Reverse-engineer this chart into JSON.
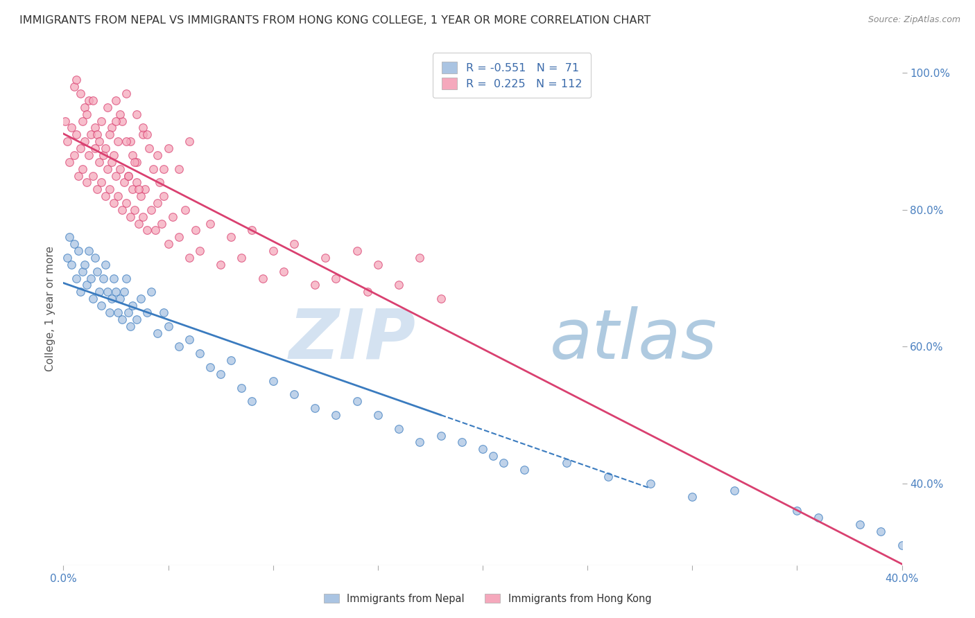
{
  "title": "IMMIGRANTS FROM NEPAL VS IMMIGRANTS FROM HONG KONG COLLEGE, 1 YEAR OR MORE CORRELATION CHART",
  "source": "Source: ZipAtlas.com",
  "ylabel": "College, 1 year or more",
  "xmin": 0.0,
  "xmax": 40.0,
  "ymin": 28.0,
  "ymax": 103.0,
  "right_yticks": [
    40.0,
    60.0,
    80.0,
    100.0
  ],
  "nepal_R": -0.551,
  "nepal_N": 71,
  "hk_R": 0.225,
  "hk_N": 112,
  "nepal_color": "#aac4e2",
  "hk_color": "#f5a8bc",
  "nepal_line_color": "#3a7bbf",
  "hk_line_color": "#d94070",
  "watermark_zip": "ZIP",
  "watermark_atlas": "atlas",
  "background_color": "#ffffff",
  "grid_color": "#c0d0e0",
  "nepal_scatter_x": [
    0.2,
    0.3,
    0.4,
    0.5,
    0.6,
    0.7,
    0.8,
    0.9,
    1.0,
    1.1,
    1.2,
    1.3,
    1.4,
    1.5,
    1.6,
    1.7,
    1.8,
    1.9,
    2.0,
    2.1,
    2.2,
    2.3,
    2.4,
    2.5,
    2.6,
    2.7,
    2.8,
    2.9,
    3.0,
    3.1,
    3.2,
    3.3,
    3.5,
    3.7,
    4.0,
    4.2,
    4.5,
    4.8,
    5.0,
    5.5,
    6.0,
    6.5,
    7.0,
    7.5,
    8.0,
    8.5,
    9.0,
    10.0,
    11.0,
    12.0,
    13.0,
    14.0,
    15.0,
    16.0,
    17.0,
    18.0,
    20.0,
    20.5,
    21.0,
    22.0,
    24.0,
    26.0,
    28.0,
    30.0,
    32.0,
    35.0,
    36.0,
    38.0,
    39.0,
    40.0,
    19.0
  ],
  "nepal_scatter_y": [
    73,
    76,
    72,
    75,
    70,
    74,
    68,
    71,
    72,
    69,
    74,
    70,
    67,
    73,
    71,
    68,
    66,
    70,
    72,
    68,
    65,
    67,
    70,
    68,
    65,
    67,
    64,
    68,
    70,
    65,
    63,
    66,
    64,
    67,
    65,
    68,
    62,
    65,
    63,
    60,
    61,
    59,
    57,
    56,
    58,
    54,
    52,
    55,
    53,
    51,
    50,
    52,
    50,
    48,
    46,
    47,
    45,
    44,
    43,
    42,
    43,
    41,
    40,
    38,
    39,
    36,
    35,
    34,
    33,
    31,
    46
  ],
  "hk_scatter_x": [
    0.1,
    0.2,
    0.3,
    0.4,
    0.5,
    0.6,
    0.7,
    0.8,
    0.9,
    1.0,
    1.1,
    1.2,
    1.3,
    1.4,
    1.5,
    1.6,
    1.7,
    1.8,
    1.9,
    2.0,
    2.1,
    2.2,
    2.3,
    2.4,
    2.5,
    2.6,
    2.7,
    2.8,
    2.9,
    3.0,
    3.1,
    3.2,
    3.3,
    3.4,
    3.5,
    3.6,
    3.7,
    3.8,
    3.9,
    4.0,
    4.2,
    4.4,
    4.5,
    4.7,
    4.8,
    5.0,
    5.2,
    5.5,
    5.8,
    6.0,
    6.3,
    6.5,
    7.0,
    7.5,
    8.0,
    8.5,
    9.0,
    9.5,
    10.0,
    10.5,
    11.0,
    12.0,
    12.5,
    13.0,
    14.0,
    14.5,
    15.0,
    16.0,
    17.0,
    18.0,
    2.1,
    2.3,
    2.5,
    2.8,
    3.0,
    3.2,
    3.5,
    3.8,
    4.0,
    4.5,
    5.0,
    5.5,
    6.0,
    0.5,
    1.0,
    1.5,
    2.0,
    2.5,
    3.0,
    3.5,
    1.2,
    1.8,
    2.2,
    2.7,
    3.3,
    3.8,
    4.3,
    0.8,
    1.1,
    1.6,
    2.4,
    3.1,
    4.1,
    3.6,
    4.8,
    0.6,
    1.4,
    2.6,
    3.4,
    4.6,
    0.9,
    1.7
  ],
  "hk_scatter_y": [
    93,
    90,
    87,
    92,
    88,
    91,
    85,
    89,
    86,
    90,
    84,
    88,
    91,
    85,
    89,
    83,
    87,
    84,
    88,
    82,
    86,
    83,
    87,
    81,
    85,
    82,
    86,
    80,
    84,
    81,
    85,
    79,
    83,
    80,
    84,
    78,
    82,
    79,
    83,
    77,
    80,
    77,
    81,
    78,
    82,
    75,
    79,
    76,
    80,
    73,
    77,
    74,
    78,
    72,
    76,
    73,
    77,
    70,
    74,
    71,
    75,
    69,
    73,
    70,
    74,
    68,
    72,
    69,
    73,
    67,
    95,
    92,
    96,
    93,
    97,
    90,
    94,
    91,
    91,
    88,
    89,
    86,
    90,
    98,
    95,
    92,
    89,
    93,
    90,
    87,
    96,
    93,
    91,
    94,
    88,
    92,
    86,
    97,
    94,
    91,
    88,
    85,
    89,
    83,
    86,
    99,
    96,
    90,
    87,
    84,
    93,
    90
  ]
}
